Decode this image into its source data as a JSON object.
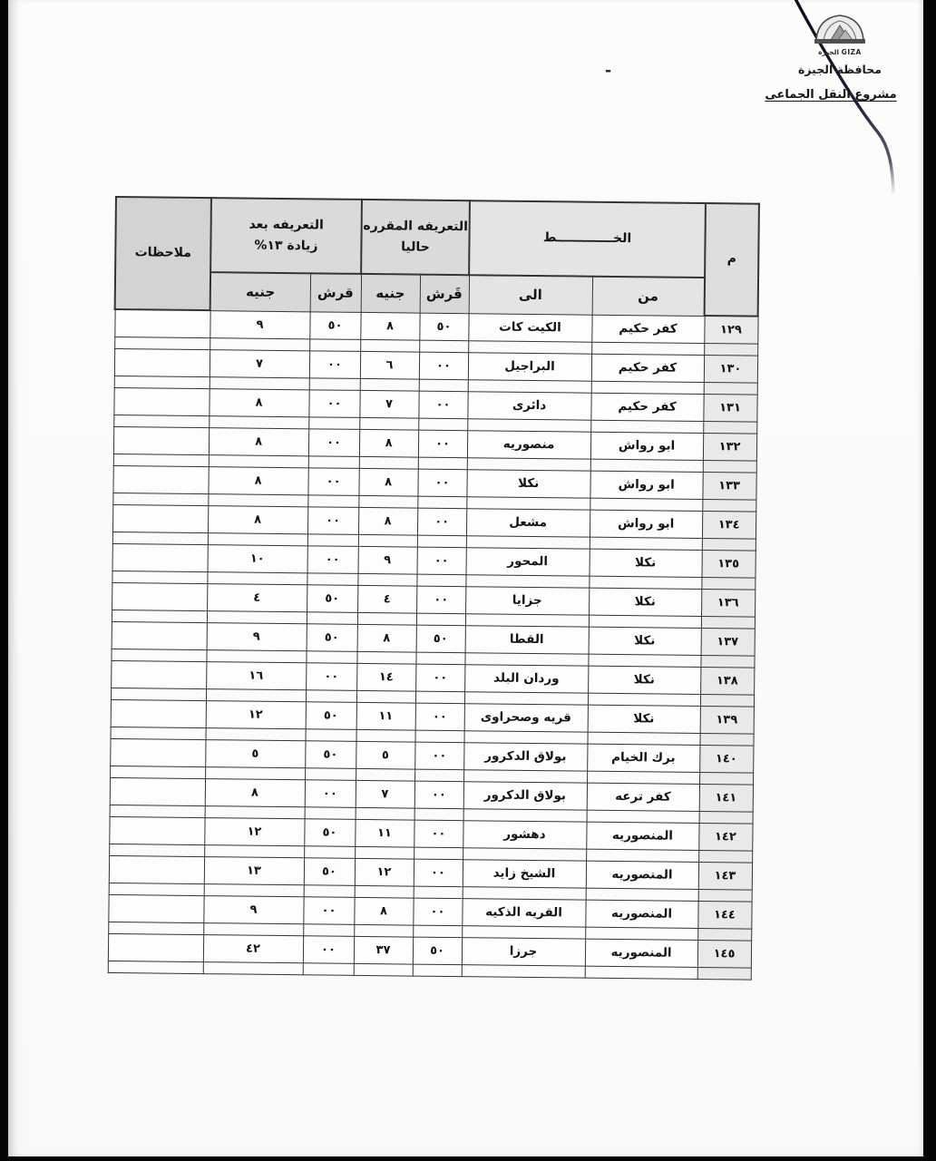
{
  "letterhead": {
    "emblem_caption": "الجيزة GIZA",
    "governorate": "محافظة الجيزة",
    "project_title": "مشروع النقل الجماعى",
    "dash": "-"
  },
  "table": {
    "header": {
      "no": "م",
      "line_group": "الخـــــــــــــط",
      "from": "من",
      "to": "الى",
      "current_tariff_line1": "التعريفه المقرره",
      "current_tariff_line2": "حاليا",
      "increased_tariff_line1": "التعريفه بعد",
      "increased_tariff_line2": "زيادة ١٣%",
      "qirsh_current": "قَرش",
      "gineh_current": "جنيه",
      "qirsh_increased": "قرش",
      "gineh_increased": "جنيه",
      "notes": "ملاحظات"
    },
    "rows": [
      {
        "no": "١٢٩",
        "from": "كفر حكيم",
        "to": "الكيت كات",
        "cur_qirsh": "٥٠",
        "cur_gineh": "٨",
        "new_qirsh": "٥٠",
        "new_gineh": "٩",
        "notes": ""
      },
      {
        "no": "١٣٠",
        "from": "كفر حكيم",
        "to": "البراجيل",
        "cur_qirsh": "٠٠",
        "cur_gineh": "٦",
        "new_qirsh": "٠٠",
        "new_gineh": "٧",
        "notes": ""
      },
      {
        "no": "١٣١",
        "from": "كفر حكيم",
        "to": "دائرى",
        "cur_qirsh": "٠٠",
        "cur_gineh": "٧",
        "new_qirsh": "٠٠",
        "new_gineh": "٨",
        "notes": ""
      },
      {
        "no": "١٣٢",
        "from": "ابو رواش",
        "to": "منصوريه",
        "cur_qirsh": "٠٠",
        "cur_gineh": "٨",
        "new_qirsh": "٠٠",
        "new_gineh": "٨",
        "notes": ""
      },
      {
        "no": "١٣٣",
        "from": "ابو رواش",
        "to": "نكلا",
        "cur_qirsh": "٠٠",
        "cur_gineh": "٨",
        "new_qirsh": "٠٠",
        "new_gineh": "٨",
        "notes": ""
      },
      {
        "no": "١٣٤",
        "from": "ابو رواش",
        "to": "مشعل",
        "cur_qirsh": "٠٠",
        "cur_gineh": "٨",
        "new_qirsh": "٠٠",
        "new_gineh": "٨",
        "notes": ""
      },
      {
        "no": "١٣٥",
        "from": "نكلا",
        "to": "المحور",
        "cur_qirsh": "٠٠",
        "cur_gineh": "٩",
        "new_qirsh": "٠٠",
        "new_gineh": "١٠",
        "notes": ""
      },
      {
        "no": "١٣٦",
        "from": "نكلا",
        "to": "جزايا",
        "cur_qirsh": "٠٠",
        "cur_gineh": "٤",
        "new_qirsh": "٥٠",
        "new_gineh": "٤",
        "notes": ""
      },
      {
        "no": "١٣٧",
        "from": "نكلا",
        "to": "القطا",
        "cur_qirsh": "٥٠",
        "cur_gineh": "٨",
        "new_qirsh": "٥٠",
        "new_gineh": "٩",
        "notes": ""
      },
      {
        "no": "١٣٨",
        "from": "نكلا",
        "to": "وردان البلد",
        "cur_qirsh": "٠٠",
        "cur_gineh": "١٤",
        "new_qirsh": "٠٠",
        "new_gineh": "١٦",
        "notes": ""
      },
      {
        "no": "١٣٩",
        "from": "نكلا",
        "to": "قريه وصحراوى",
        "cur_qirsh": "٠٠",
        "cur_gineh": "١١",
        "new_qirsh": "٥٠",
        "new_gineh": "١٢",
        "notes": ""
      },
      {
        "no": "١٤٠",
        "from": "برك الخيام",
        "to": "بولاق الدكرور",
        "cur_qirsh": "٠٠",
        "cur_gineh": "٥",
        "new_qirsh": "٥٠",
        "new_gineh": "٥",
        "notes": ""
      },
      {
        "no": "١٤١",
        "from": "كفر ترعه",
        "to": "بولاق الدكرور",
        "cur_qirsh": "٠٠",
        "cur_gineh": "٧",
        "new_qirsh": "٠٠",
        "new_gineh": "٨",
        "notes": ""
      },
      {
        "no": "١٤٢",
        "from": "المنصوريه",
        "to": "دهشور",
        "cur_qirsh": "٠٠",
        "cur_gineh": "١١",
        "new_qirsh": "٥٠",
        "new_gineh": "١٢",
        "notes": ""
      },
      {
        "no": "١٤٣",
        "from": "المنصوريه",
        "to": "الشيخ زايد",
        "cur_qirsh": "٠٠",
        "cur_gineh": "١٢",
        "new_qirsh": "٥٠",
        "new_gineh": "١٣",
        "notes": ""
      },
      {
        "no": "١٤٤",
        "from": "المنصوريه",
        "to": "القريه الذكيه",
        "cur_qirsh": "٠٠",
        "cur_gineh": "٨",
        "new_qirsh": "٠٠",
        "new_gineh": "٩",
        "notes": ""
      },
      {
        "no": "١٤٥",
        "from": "المنصوريه",
        "to": "جرزا",
        "cur_qirsh": "٥٠",
        "cur_gineh": "٣٧",
        "new_qirsh": "٠٠",
        "new_gineh": "٤٢",
        "notes": ""
      }
    ]
  }
}
